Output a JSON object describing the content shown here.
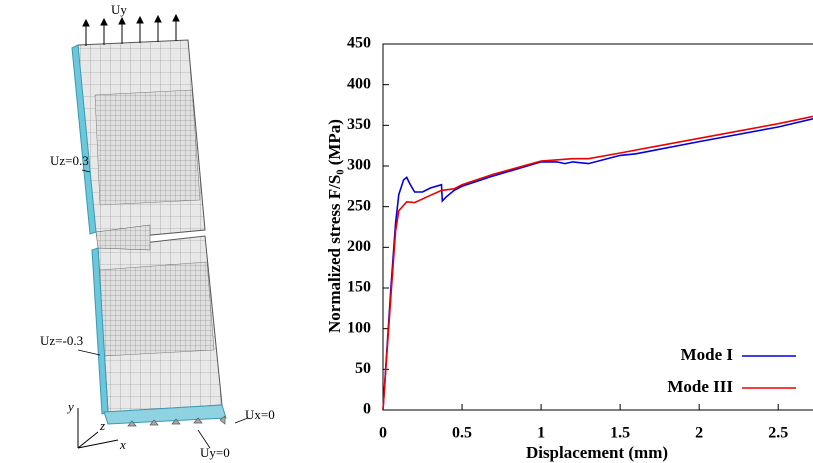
{
  "diagram": {
    "labels": {
      "top_load": "Uy",
      "left_upper": "Uz=0.3",
      "left_lower": "Uz=-0.3",
      "bottom_x": "Ux=0",
      "bottom_y": "Uy=0",
      "axis_y": "y",
      "axis_z": "z",
      "axis_x": "x"
    }
  },
  "chart_data": {
    "type": "line",
    "x_label": "Displacement (mm)",
    "y_label": "Normalized stress F/S₀ (MPa)",
    "xlim": [
      0,
      2.72
    ],
    "ylim": [
      0,
      450
    ],
    "xticks": [
      0,
      0.5,
      1,
      1.5,
      2,
      2.5
    ],
    "yticks": [
      0,
      50,
      100,
      150,
      200,
      250,
      300,
      350,
      400,
      450
    ],
    "legend": "lower right",
    "series": [
      {
        "name": "Mode I",
        "color": "#0000dd",
        "x": [
          0,
          0.05,
          0.08,
          0.1,
          0.13,
          0.15,
          0.17,
          0.2,
          0.25,
          0.3,
          0.37,
          0.375,
          0.4,
          0.45,
          0.5,
          0.7,
          1.0,
          1.1,
          1.15,
          1.2,
          1.3,
          1.5,
          1.6,
          2.0,
          2.5,
          2.72
        ],
        "values": [
          0,
          150,
          230,
          265,
          283,
          286,
          278,
          268,
          268,
          273,
          277,
          257,
          262,
          270,
          275,
          288,
          305,
          305,
          303,
          305,
          303,
          313,
          315,
          330,
          348,
          358
        ]
      },
      {
        "name": "Mode III",
        "color": "#ee0000",
        "x": [
          0,
          0.05,
          0.08,
          0.1,
          0.15,
          0.2,
          0.3,
          0.37,
          0.45,
          0.5,
          0.7,
          1.0,
          1.2,
          1.3,
          1.5,
          2.0,
          2.5,
          2.72
        ],
        "values": [
          0,
          140,
          220,
          245,
          256,
          255,
          264,
          270,
          272,
          277,
          290,
          306,
          309,
          309,
          316,
          334,
          352,
          361
        ]
      }
    ]
  }
}
